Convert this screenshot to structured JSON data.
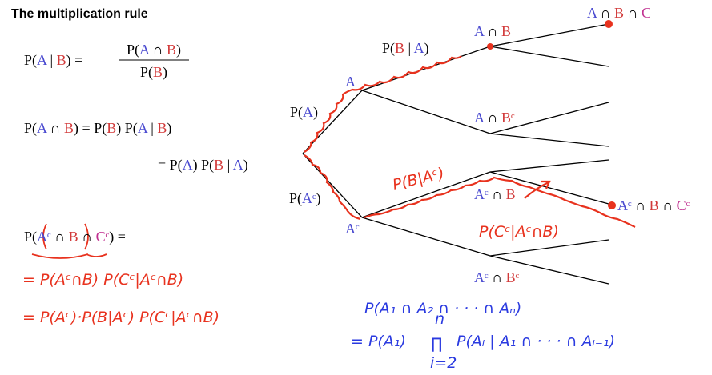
{
  "title": "The multiplication rule",
  "formulas": [
    {
      "lhs": [
        {
          "text": "P(",
          "color": "#000000"
        },
        {
          "text": "A",
          "color": "#4a4ad0"
        },
        {
          "text": " | ",
          "color": "#000000"
        },
        {
          "text": "B",
          "color": "#d23a3a"
        },
        {
          "text": ") =",
          "color": "#000000"
        }
      ],
      "numerator": [
        {
          "text": "P(",
          "color": "#000000"
        },
        {
          "text": "A",
          "color": "#4a4ad0"
        },
        {
          "text": " ∩ ",
          "color": "#000000"
        },
        {
          "text": "B",
          "color": "#d23a3a"
        },
        {
          "text": ")",
          "color": "#000000"
        }
      ],
      "denominator": [
        {
          "text": "P(",
          "color": "#000000"
        },
        {
          "text": "B",
          "color": "#d23a3a"
        },
        {
          "text": ")",
          "color": "#000000"
        }
      ]
    },
    {
      "lhs": [
        {
          "text": "P(",
          "color": "#000000"
        },
        {
          "text": "A",
          "color": "#4a4ad0"
        },
        {
          "text": " ∩ ",
          "color": "#000000"
        },
        {
          "text": "B",
          "color": "#d23a3a"
        },
        {
          "text": ") = P(",
          "color": "#000000"
        },
        {
          "text": "B",
          "color": "#d23a3a"
        },
        {
          "text": ") P(",
          "color": "#000000"
        },
        {
          "text": "A",
          "color": "#4a4ad0"
        },
        {
          "text": " | ",
          "color": "#000000"
        },
        {
          "text": "B",
          "color": "#d23a3a"
        },
        {
          "text": ")",
          "color": "#000000"
        }
      ]
    },
    {
      "lhs": [
        {
          "text": "= P(",
          "color": "#000000"
        },
        {
          "text": "A",
          "color": "#4a4ad0"
        },
        {
          "text": ") P(",
          "color": "#000000"
        },
        {
          "text": "B",
          "color": "#d23a3a"
        },
        {
          "text": " | ",
          "color": "#000000"
        },
        {
          "text": "A",
          "color": "#4a4ad0"
        },
        {
          "text": ")",
          "color": "#000000"
        }
      ]
    },
    {
      "lhs": [
        {
          "text": "P(",
          "color": "#000000"
        },
        {
          "text": "Aᶜ",
          "color": "#4a4ad0"
        },
        {
          "text": " ∩ ",
          "color": "#000000"
        },
        {
          "text": "B",
          "color": "#d23a3a"
        },
        {
          "text": " ∩ ",
          "color": "#000000"
        },
        {
          "text": "Cᶜ",
          "color": "#c03090"
        },
        {
          "text": ") =",
          "color": "#000000"
        }
      ]
    }
  ],
  "handwritten": [
    {
      "text": "= P(Aᶜ∩B) P(Cᶜ|Aᶜ∩B)",
      "color": "#e8321e"
    },
    {
      "text": "= P(Aᶜ)·P(B|Aᶜ) P(Cᶜ|Aᶜ∩B)",
      "color": "#e8321e"
    },
    {
      "text": "P(A₁ ∩ A₂ ∩ · · · ∩ Aₙ)",
      "color": "#2a3ae0"
    },
    {
      "text": "= P(A₁)",
      "color": "#2a3ae0"
    },
    {
      "text": "∏",
      "color": "#2a3ae0"
    },
    {
      "text": "n",
      "color": "#2a3ae0"
    },
    {
      "text": "i=2",
      "color": "#2a3ae0"
    },
    {
      "text": "P(Aᵢ | A₁ ∩ · · · ∩ Aᵢ₋₁)",
      "color": "#2a3ae0"
    },
    {
      "text": "P(B|Aᶜ)",
      "color": "#e8321e"
    },
    {
      "text": "P(Cᶜ|Aᶜ∩B)",
      "color": "#e8321e"
    }
  ],
  "tree_labels": [
    [
      {
        "text": "A",
        "color": "#4a4ad0"
      },
      {
        "text": " ∩ ",
        "color": "#000000"
      },
      {
        "text": "B",
        "color": "#d23a3a"
      },
      {
        "text": " ∩ ",
        "color": "#000000"
      },
      {
        "text": "C",
        "color": "#c03090"
      }
    ],
    [
      {
        "text": "A",
        "color": "#4a4ad0"
      },
      {
        "text": " ∩ ",
        "color": "#000000"
      },
      {
        "text": "B",
        "color": "#d23a3a"
      }
    ],
    [
      {
        "text": "P(",
        "color": "#000000"
      },
      {
        "text": "B",
        "color": "#d23a3a"
      },
      {
        "text": " | ",
        "color": "#000000"
      },
      {
        "text": "A",
        "color": "#4a4ad0"
      },
      {
        "text": ")",
        "color": "#000000"
      }
    ],
    [
      {
        "text": "A",
        "color": "#4a4ad0"
      }
    ],
    [
      {
        "text": "P(",
        "color": "#000000"
      },
      {
        "text": "A",
        "color": "#4a4ad0"
      },
      {
        "text": ")",
        "color": "#000000"
      }
    ],
    [
      {
        "text": "A",
        "color": "#4a4ad0"
      },
      {
        "text": " ∩ ",
        "color": "#000000"
      },
      {
        "text": "Bᶜ",
        "color": "#d23a3a"
      }
    ],
    [
      {
        "text": "Aᶜ",
        "color": "#4a4ad0"
      },
      {
        "text": " ∩ ",
        "color": "#000000"
      },
      {
        "text": "B",
        "color": "#d23a3a"
      }
    ],
    [
      {
        "text": "P(",
        "color": "#000000"
      },
      {
        "text": "Aᶜ",
        "color": "#4a4ad0"
      },
      {
        "text": ")",
        "color": "#000000"
      }
    ],
    [
      {
        "text": "Aᶜ",
        "color": "#4a4ad0"
      }
    ],
    [
      {
        "text": "Aᶜ",
        "color": "#4a4ad0"
      },
      {
        "text": " ∩ ",
        "color": "#000000"
      },
      {
        "text": "B",
        "color": "#d23a3a"
      },
      {
        "text": " ∩ ",
        "color": "#000000"
      },
      {
        "text": "Cᶜ",
        "color": "#c03090"
      }
    ],
    [
      {
        "text": "Aᶜ",
        "color": "#4a4ad0"
      },
      {
        "text": " ∩ ",
        "color": "#000000"
      },
      {
        "text": "Bᶜ",
        "color": "#d23a3a"
      }
    ]
  ]
}
